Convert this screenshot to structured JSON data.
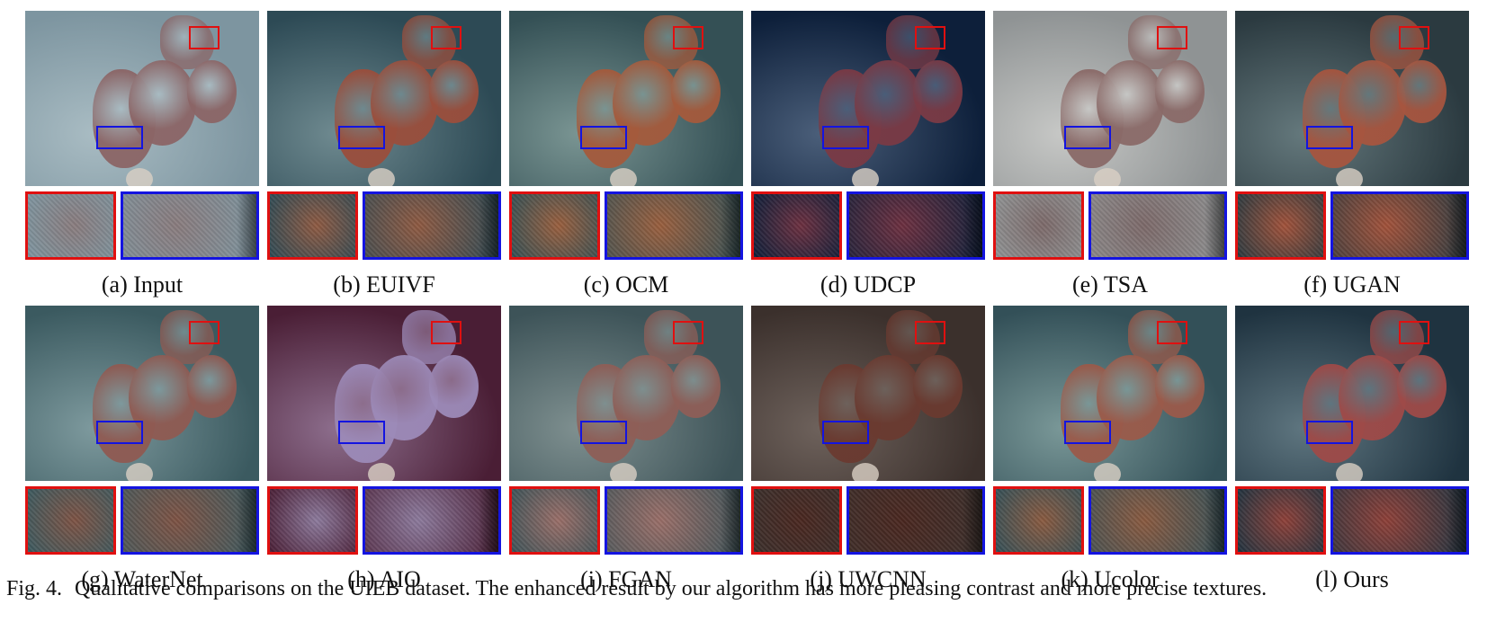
{
  "panels": [
    {
      "letter": "(a)",
      "name": "Input",
      "palette": {
        "bg1": "#7d95a0",
        "bg2": "#a9bcc3",
        "coral": "#8b6566",
        "zoom": "#8a7c7e"
      }
    },
    {
      "letter": "(b)",
      "name": "EUIVF",
      "palette": {
        "bg1": "#2d4a55",
        "bg2": "#6f8a90",
        "coral": "#9a4e3c",
        "zoom": "#8f5a42"
      }
    },
    {
      "letter": "(c)",
      "name": "OCM",
      "palette": {
        "bg1": "#345055",
        "bg2": "#7a9593",
        "coral": "#a45a3c",
        "zoom": "#9a5f3e"
      }
    },
    {
      "letter": "(d)",
      "name": "UDCP",
      "palette": {
        "bg1": "#0d1f3a",
        "bg2": "#4b5f7a",
        "coral": "#7a3a45",
        "zoom": "#6d3040"
      }
    },
    {
      "letter": "(e)",
      "name": "TSA",
      "palette": {
        "bg1": "#8f9394",
        "bg2": "#c7c8c6",
        "coral": "#8a6a68",
        "zoom": "#7d6a6a"
      }
    },
    {
      "letter": "(f)",
      "name": "UGAN",
      "palette": {
        "bg1": "#2b3a40",
        "bg2": "#65797d",
        "coral": "#a6553f",
        "zoom": "#a2523a"
      }
    },
    {
      "letter": "(g)",
      "name": "WaterNet",
      "palette": {
        "bg1": "#3b5a60",
        "bg2": "#7e9a9e",
        "coral": "#8f5a52",
        "zoom": "#7e5344"
      }
    },
    {
      "letter": "(h)",
      "name": "AIO",
      "palette": {
        "bg1": "#4a1e35",
        "bg2": "#8d6e8d",
        "coral": "#9c8ab8",
        "zoom": "#8c7a9c"
      }
    },
    {
      "letter": "(i)",
      "name": "FGAN",
      "palette": {
        "bg1": "#3d5358",
        "bg2": "#7f9090",
        "coral": "#8e5e57",
        "zoom": "#9a6e68"
      }
    },
    {
      "letter": "(j)",
      "name": "UWCNN",
      "palette": {
        "bg1": "#3b302c",
        "bg2": "#6e625c",
        "coral": "#6a3a30",
        "zoom": "#4a2720"
      }
    },
    {
      "letter": "(k)",
      "name": "Ucolor",
      "palette": {
        "bg1": "#335058",
        "bg2": "#7a9898",
        "coral": "#9a5a4a",
        "zoom": "#8a5a40"
      }
    },
    {
      "letter": "(l)",
      "name": "Ours",
      "palette": {
        "bg1": "#1f3340",
        "bg2": "#5f7680",
        "coral": "#9e4a48",
        "zoom": "#8e4038"
      }
    }
  ],
  "caption": {
    "figure": "Fig. 4.",
    "text": "Qualitative comparisons on the UIEB dataset. The enhanced result by our algorithm has more pleasing contrast and more precise textures."
  }
}
